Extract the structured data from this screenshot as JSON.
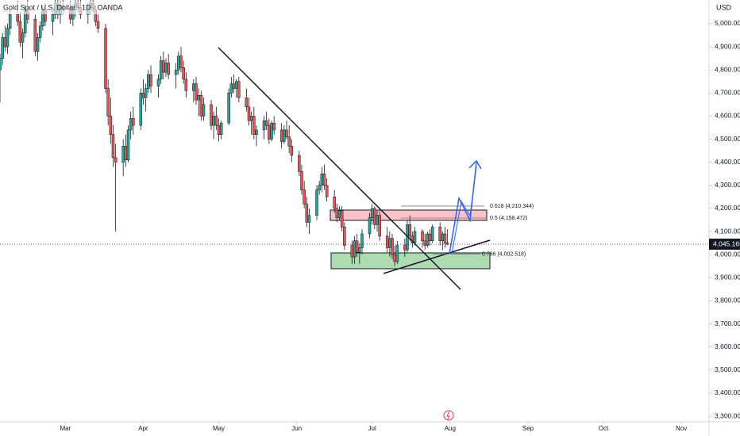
{
  "chart_data": {
    "type": "candlestick",
    "title": "Gold Spot / U.S. Dollar · 1D · OANDA",
    "y_unit": "USD",
    "xlim": [
      -26,
      256
    ],
    "ylim": [
      3276,
      5103
    ],
    "xticks": [
      {
        "value": 0,
        "label": "Mar"
      },
      {
        "value": 31,
        "label": "Apr"
      },
      {
        "value": 61,
        "label": "May"
      },
      {
        "value": 92,
        "label": "Jun"
      },
      {
        "value": 122,
        "label": "Jul"
      },
      {
        "value": 153,
        "label": "Aug"
      },
      {
        "value": 184,
        "label": "Sep"
      },
      {
        "value": 214,
        "label": "Oct"
      },
      {
        "value": 245,
        "label": "Nov"
      }
    ],
    "yticks": [
      {
        "value": 3300,
        "label": "3,300.000"
      },
      {
        "value": 3400,
        "label": "3,400.000"
      },
      {
        "value": 3500,
        "label": "3,500.000"
      },
      {
        "value": 3600,
        "label": "3,600.000"
      },
      {
        "value": 3700,
        "label": "3,700.000"
      },
      {
        "value": 3800,
        "label": "3,800.000"
      },
      {
        "value": 3900,
        "label": "3,900.000"
      },
      {
        "value": 4000,
        "label": "4,000.000"
      },
      {
        "value": 4100,
        "label": "4,100.000"
      },
      {
        "value": 4200,
        "label": "4,200.000"
      },
      {
        "value": 4300,
        "label": "4,300.000"
      },
      {
        "value": 4400,
        "label": "4,400.000"
      },
      {
        "value": 4500,
        "label": "4,500.000"
      },
      {
        "value": 4600,
        "label": "4,600.000"
      },
      {
        "value": 4700,
        "label": "4,700.000"
      },
      {
        "value": 4800,
        "label": "4,800.000"
      },
      {
        "value": 4900,
        "label": "4,900.000"
      },
      {
        "value": 5000,
        "label": "5,000.000"
      }
    ],
    "last_price": {
      "value": 4045.165,
      "label": "4,045.165"
    },
    "fib_levels": [
      {
        "value": 4210.344,
        "label": "0.618 (4,210.344)"
      },
      {
        "value": 4158.472,
        "label": "0.5 (4,158.472)"
      },
      {
        "value": 4002.518,
        "label": "0.786 (4,002.518)"
      }
    ],
    "up_color": "#26a69a",
    "down_color": "#ef5350",
    "series": [
      {
        "x": [
          -26,
          -25,
          -24,
          -23,
          -22,
          -19,
          -18,
          -17,
          -16,
          -15,
          -12,
          -11,
          -10,
          -9,
          -8,
          -5,
          -4,
          -3,
          -2,
          -1,
          2,
          3,
          4,
          5,
          6,
          9,
          10,
          11,
          12,
          13,
          16,
          17,
          18,
          19,
          20,
          23,
          24,
          25,
          26,
          27,
          30,
          31,
          32,
          33,
          34,
          37,
          38,
          39,
          40,
          41,
          44,
          45,
          46,
          47,
          48,
          51,
          52,
          53,
          54,
          55,
          58,
          59,
          60,
          61,
          62,
          65,
          66,
          67,
          68,
          69,
          72,
          73,
          74,
          75,
          76,
          79,
          80,
          81,
          82,
          83,
          86,
          87,
          88,
          89,
          90,
          93,
          94,
          95,
          96,
          97,
          100,
          101,
          102,
          103,
          104,
          107,
          108,
          109,
          110,
          111,
          114,
          115,
          116,
          117,
          118,
          121,
          122,
          123,
          124,
          125,
          128,
          129,
          130,
          131,
          132,
          135,
          136,
          137,
          138,
          139,
          142,
          143,
          144,
          145,
          146,
          149,
          150,
          151,
          152
        ],
        "ohlc": [
          [
            4800,
            4870,
            4660,
            4850
          ],
          [
            4850,
            4960,
            4820,
            4940
          ],
          [
            4940,
            4990,
            4880,
            4900
          ],
          [
            4900,
            5000,
            4870,
            4980
          ],
          [
            4980,
            5060,
            4950,
            5040
          ],
          [
            5040,
            5100,
            4990,
            5010
          ],
          [
            5010,
            5050,
            4900,
            4920
          ],
          [
            4920,
            4980,
            4850,
            4960
          ],
          [
            4960,
            5080,
            4940,
            5060
          ],
          [
            5060,
            5110,
            5000,
            5020
          ],
          [
            5020,
            5040,
            4860,
            4880
          ],
          [
            4880,
            4960,
            4840,
            4940
          ],
          [
            4940,
            5010,
            4920,
            4990
          ],
          [
            4990,
            5080,
            4970,
            5060
          ],
          [
            5060,
            5090,
            4990,
            5010
          ],
          [
            5010,
            5060,
            4950,
            5040
          ],
          [
            5040,
            5120,
            5020,
            5090
          ],
          [
            5090,
            5110,
            5020,
            5040
          ],
          [
            5040,
            5100,
            5000,
            5080
          ],
          [
            5080,
            5120,
            5040,
            5060
          ],
          [
            5060,
            5100,
            5000,
            5020
          ],
          [
            5020,
            5080,
            4990,
            5060
          ],
          [
            5060,
            5110,
            5030,
            5090
          ],
          [
            5090,
            5120,
            5050,
            5070
          ],
          [
            5070,
            5110,
            5020,
            5040
          ],
          [
            5040,
            5090,
            5000,
            5070
          ],
          [
            5070,
            5110,
            5040,
            5090
          ],
          [
            5090,
            5120,
            5050,
            5060
          ],
          [
            5060,
            5080,
            4990,
            5010
          ],
          [
            5010,
            5040,
            4960,
            4980
          ],
          [
            4980,
            5000,
            4700,
            4720
          ],
          [
            4720,
            4760,
            4560,
            4600
          ],
          [
            4600,
            4680,
            4480,
            4520
          ],
          [
            4520,
            4560,
            4380,
            4420
          ],
          [
            4420,
            4480,
            4100,
            4400
          ],
          [
            4400,
            4500,
            4340,
            4470
          ],
          [
            4470,
            4520,
            4380,
            4410
          ],
          [
            4410,
            4560,
            4400,
            4540
          ],
          [
            4540,
            4620,
            4500,
            4590
          ],
          [
            4590,
            4640,
            4520,
            4560
          ],
          [
            4560,
            4720,
            4540,
            4700
          ],
          [
            4700,
            4760,
            4650,
            4680
          ],
          [
            4680,
            4740,
            4620,
            4720
          ],
          [
            4720,
            4800,
            4700,
            4780
          ],
          [
            4780,
            4820,
            4700,
            4730
          ],
          [
            4730,
            4780,
            4680,
            4760
          ],
          [
            4760,
            4860,
            4740,
            4840
          ],
          [
            4840,
            4880,
            4760,
            4790
          ],
          [
            4790,
            4850,
            4770,
            4830
          ],
          [
            4830,
            4870,
            4760,
            4780
          ],
          [
            4780,
            4830,
            4720,
            4800
          ],
          [
            4800,
            4880,
            4780,
            4860
          ],
          [
            4860,
            4900,
            4790,
            4810
          ],
          [
            4810,
            4840,
            4740,
            4760
          ],
          [
            4760,
            4790,
            4680,
            4710
          ],
          [
            4710,
            4760,
            4660,
            4740
          ],
          [
            4740,
            4770,
            4650,
            4670
          ],
          [
            4670,
            4720,
            4600,
            4690
          ],
          [
            4690,
            4710,
            4580,
            4600
          ],
          [
            4600,
            4680,
            4580,
            4650
          ],
          [
            4650,
            4670,
            4540,
            4560
          ],
          [
            4560,
            4620,
            4500,
            4600
          ],
          [
            4600,
            4640,
            4540,
            4560
          ],
          [
            4560,
            4590,
            4490,
            4520
          ],
          [
            4520,
            4580,
            4500,
            4570
          ],
          [
            4570,
            4720,
            4560,
            4700
          ],
          [
            4700,
            4770,
            4680,
            4740
          ],
          [
            4740,
            4780,
            4700,
            4720
          ],
          [
            4720,
            4760,
            4680,
            4750
          ],
          [
            4750,
            4770,
            4660,
            4680
          ],
          [
            4680,
            4720,
            4620,
            4640
          ],
          [
            4640,
            4680,
            4560,
            4580
          ],
          [
            4580,
            4620,
            4520,
            4600
          ],
          [
            4600,
            4640,
            4500,
            4520
          ],
          [
            4520,
            4560,
            4470,
            4540
          ],
          [
            4540,
            4600,
            4500,
            4580
          ],
          [
            4580,
            4620,
            4540,
            4560
          ],
          [
            4560,
            4590,
            4480,
            4500
          ],
          [
            4500,
            4580,
            4490,
            4570
          ],
          [
            4570,
            4600,
            4520,
            4540
          ],
          [
            4540,
            4570,
            4460,
            4490
          ],
          [
            4490,
            4560,
            4480,
            4540
          ],
          [
            4540,
            4580,
            4500,
            4510
          ],
          [
            4510,
            4560,
            4440,
            4470
          ],
          [
            4470,
            4500,
            4400,
            4430
          ],
          [
            4430,
            4450,
            4340,
            4360
          ],
          [
            4360,
            4390,
            4260,
            4280
          ],
          [
            4280,
            4320,
            4200,
            4220
          ],
          [
            4220,
            4250,
            4120,
            4140
          ],
          [
            4140,
            4200,
            4090,
            4170
          ],
          [
            4170,
            4300,
            4150,
            4280
          ],
          [
            4280,
            4320,
            4260,
            4300
          ],
          [
            4300,
            4380,
            4270,
            4350
          ],
          [
            4350,
            4390,
            4280,
            4300
          ],
          [
            4300,
            4330,
            4230,
            4250
          ],
          [
            4250,
            4280,
            4180,
            4200
          ],
          [
            4200,
            4220,
            4140,
            4160
          ],
          [
            4160,
            4210,
            4150,
            4190
          ],
          [
            4190,
            4210,
            4100,
            4120
          ],
          [
            4120,
            4140,
            4020,
            4040
          ],
          [
            4040,
            4060,
            3960,
            3990
          ],
          [
            3990,
            4080,
            3960,
            4060
          ],
          [
            4060,
            4090,
            3990,
            4010
          ],
          [
            4010,
            4050,
            3960,
            4030
          ],
          [
            4030,
            4110,
            4000,
            4090
          ],
          [
            4090,
            4180,
            4070,
            4160
          ],
          [
            4160,
            4220,
            4130,
            4200
          ],
          [
            4200,
            4210,
            4110,
            4130
          ],
          [
            4130,
            4190,
            4100,
            4170
          ],
          [
            4170,
            4190,
            4060,
            4080
          ],
          [
            4080,
            4120,
            4010,
            4030
          ],
          [
            4030,
            4100,
            3990,
            4070
          ],
          [
            4070,
            4090,
            3980,
            4000
          ],
          [
            4000,
            4040,
            3950,
            3970
          ],
          [
            3970,
            4060,
            3960,
            4040
          ],
          [
            4040,
            4070,
            3990,
            4020
          ],
          [
            4020,
            4150,
            4010,
            4130
          ],
          [
            4130,
            4170,
            4060,
            4080
          ],
          [
            4080,
            4100,
            4030,
            4050
          ],
          [
            4050,
            4120,
            4040,
            4100
          ],
          [
            4100,
            4110,
            4030,
            4060
          ],
          [
            4060,
            4090,
            4020,
            4040
          ],
          [
            4040,
            4100,
            4030,
            4090
          ],
          [
            4090,
            4110,
            4040,
            4060
          ],
          [
            4060,
            4130,
            4050,
            4120
          ],
          [
            4120,
            4140,
            4040,
            4060
          ],
          [
            4060,
            4100,
            4020,
            4090
          ],
          [
            4090,
            4120,
            4030,
            4050
          ],
          [
            4050,
            4110,
            4040,
            4045.165
          ]
        ]
      }
    ]
  }
}
